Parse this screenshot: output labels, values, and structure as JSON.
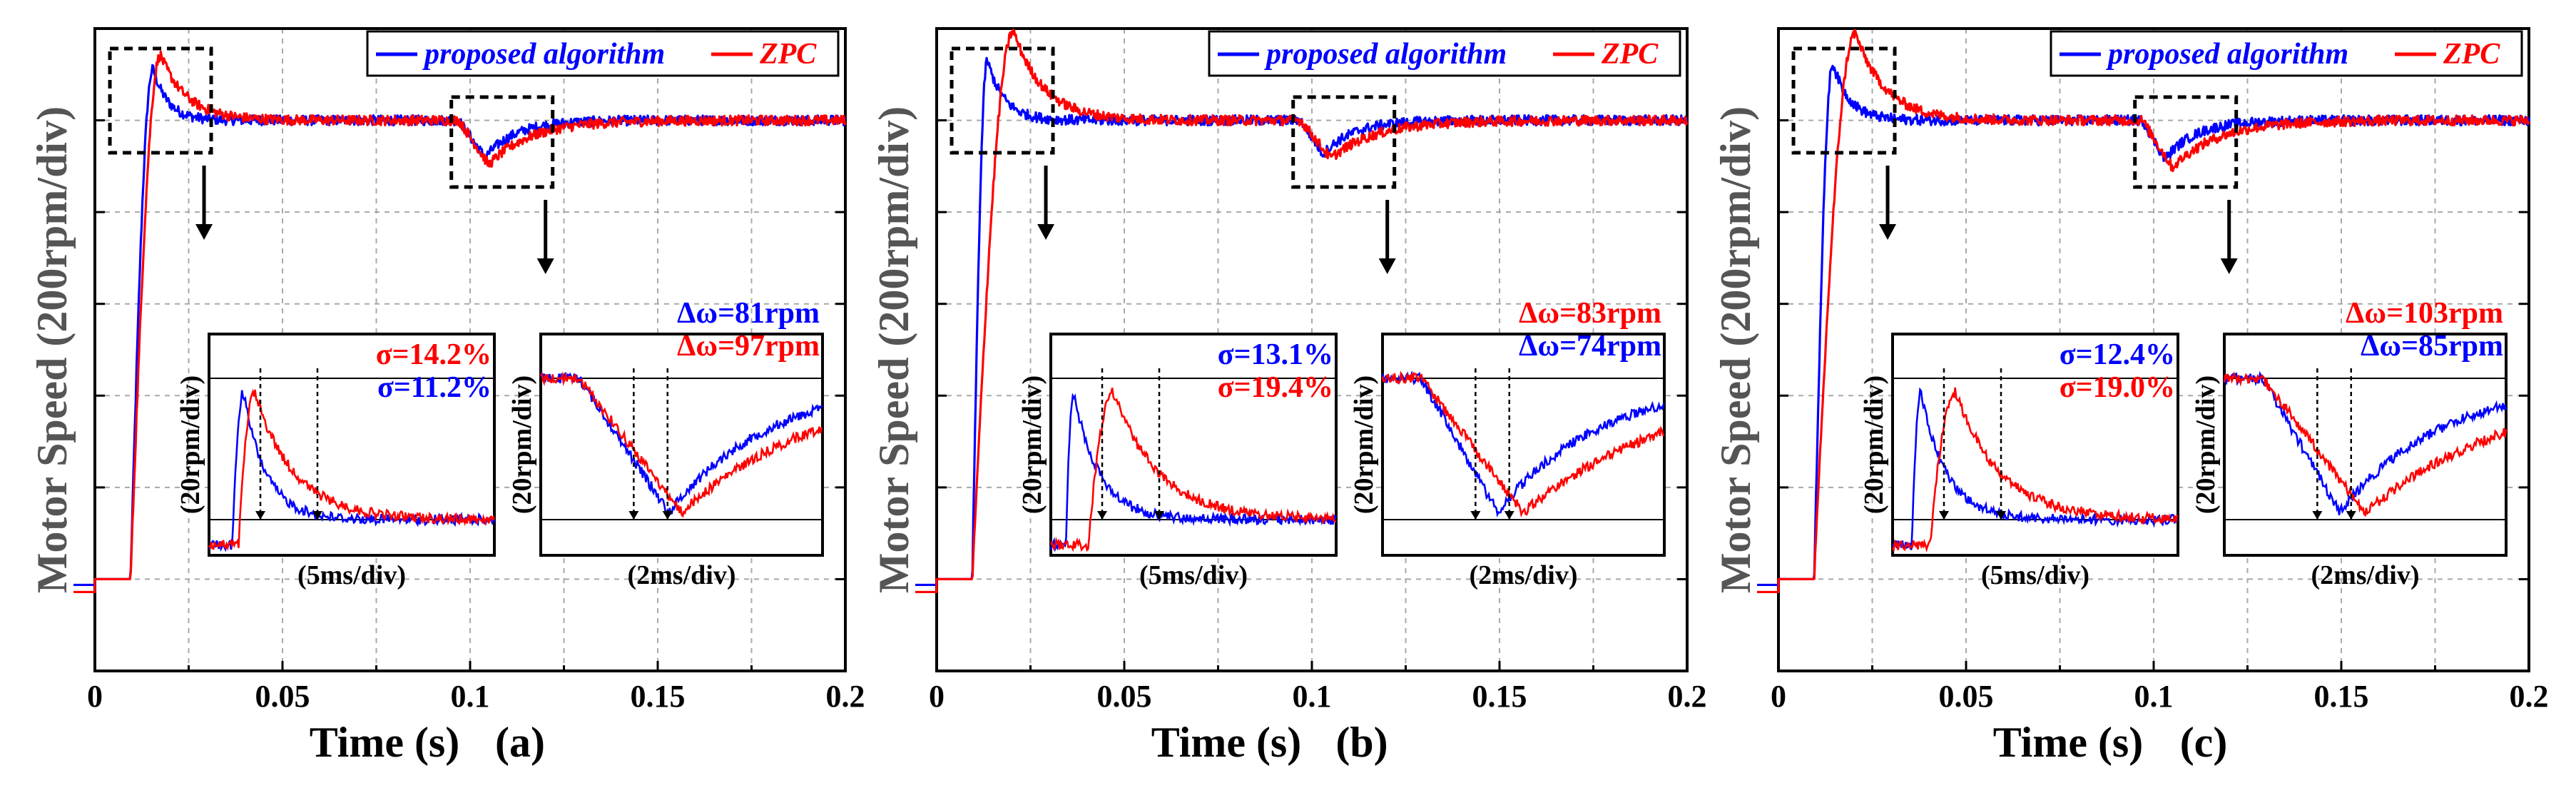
{
  "chart_data": [
    {
      "type": "line",
      "panel": "(a)",
      "xlabel": "Time (s)",
      "ylabel": "Motor Speed (200rpm/div)",
      "xlim": [
        0,
        0.2
      ],
      "x_ticks": [
        "0",
        "0.05",
        "0.1",
        "0.15",
        "0.2"
      ],
      "y_divisions": 6,
      "grid": true,
      "legend": {
        "position": "top-right",
        "entries": [
          "proposed algorithm",
          "ZPC"
        ]
      },
      "series": [
        {
          "name": "proposed algorithm",
          "color": "#0000ff",
          "step_time": 0.0095,
          "overshoot_pct": 11.2,
          "dip_rpm": 81,
          "peak_time": 0.0155,
          "settle_tau": 0.004,
          "dip_time": 0.104,
          "recover_tau": 0.008
        },
        {
          "name": "ZPC",
          "color": "#ff0000",
          "step_time": 0.0095,
          "overshoot_pct": 14.2,
          "dip_rpm": 97,
          "peak_time": 0.0175,
          "settle_tau": 0.007,
          "dip_time": 0.105,
          "recover_tau": 0.011
        }
      ],
      "inset_left": {
        "xlabel": "(5ms/div)",
        "ylabel": "(20rpm/div)",
        "annotations": [
          {
            "text": "σ=14.2%",
            "color": "#ff0000"
          },
          {
            "text": "σ=11.2%",
            "color": "#0000ff"
          }
        ]
      },
      "inset_right": {
        "xlabel": "(2ms/div)",
        "ylabel": "(20rpm/div)",
        "annotations": [
          {
            "text": "Δω=81rpm",
            "color": "#0000ff"
          },
          {
            "text": "Δω=97rpm",
            "color": "#ff0000"
          }
        ]
      }
    },
    {
      "type": "line",
      "panel": "(b)",
      "xlabel": "Time (s)",
      "ylabel": "Motor Speed (200rpm/div)",
      "xlim": [
        0,
        0.2
      ],
      "x_ticks": [
        "0",
        "0.05",
        "0.1",
        "0.15",
        "0.2"
      ],
      "y_divisions": 6,
      "grid": true,
      "legend": {
        "position": "top-right",
        "entries": [
          "proposed algorithm",
          "ZPC"
        ]
      },
      "series": [
        {
          "name": "proposed algorithm",
          "color": "#0000ff",
          "step_time": 0.0095,
          "overshoot_pct": 13.1,
          "dip_rpm": 74,
          "peak_time": 0.0135,
          "settle_tau": 0.0045,
          "dip_time": 0.103,
          "recover_tau": 0.008
        },
        {
          "name": "ZPC",
          "color": "#ff0000",
          "step_time": 0.0095,
          "overshoot_pct": 19.4,
          "dip_rpm": 83,
          "peak_time": 0.0205,
          "settle_tau": 0.008,
          "dip_time": 0.105,
          "recover_tau": 0.012
        }
      ],
      "inset_left": {
        "xlabel": "(5ms/div)",
        "ylabel": "(20rpm/div)",
        "annotations": [
          {
            "text": "σ=13.1%",
            "color": "#0000ff"
          },
          {
            "text": "σ=19.4%",
            "color": "#ff0000"
          }
        ]
      },
      "inset_right": {
        "xlabel": "(2ms/div)",
        "ylabel": "(20rpm/div)",
        "annotations": [
          {
            "text": "Δω=83rpm",
            "color": "#ff0000"
          },
          {
            "text": "Δω=74rpm",
            "color": "#0000ff"
          }
        ]
      }
    },
    {
      "type": "line",
      "panel": "(c)",
      "xlabel": "Time (s)",
      "ylabel": "Motor Speed (200rpm/div)",
      "xlim": [
        0,
        0.2
      ],
      "x_ticks": [
        "0",
        "0.05",
        "0.1",
        "0.15",
        "0.2"
      ],
      "y_divisions": 6,
      "grid": true,
      "legend": {
        "position": "top-right",
        "entries": [
          "proposed algorithm",
          "ZPC"
        ]
      },
      "series": [
        {
          "name": "proposed algorithm",
          "color": "#0000ff",
          "step_time": 0.0095,
          "overshoot_pct": 12.4,
          "dip_rpm": 85,
          "peak_time": 0.0145,
          "settle_tau": 0.0045,
          "dip_time": 0.103,
          "recover_tau": 0.008
        },
        {
          "name": "ZPC",
          "color": "#ff0000",
          "step_time": 0.0095,
          "overshoot_pct": 19.0,
          "dip_rpm": 103,
          "peak_time": 0.0205,
          "settle_tau": 0.008,
          "dip_time": 0.105,
          "recover_tau": 0.012
        }
      ],
      "inset_left": {
        "xlabel": "(5ms/div)",
        "ylabel": "(20rpm/div)",
        "annotations": [
          {
            "text": "σ=12.4%",
            "color": "#0000ff"
          },
          {
            "text": "σ=19.0%",
            "color": "#ff0000"
          }
        ]
      },
      "inset_right": {
        "xlabel": "(2ms/div)",
        "ylabel": "(20rpm/div)",
        "annotations": [
          {
            "text": "Δω=103rpm",
            "color": "#ff0000"
          },
          {
            "text": "Δω=85rpm",
            "color": "#0000ff"
          }
        ]
      }
    }
  ]
}
